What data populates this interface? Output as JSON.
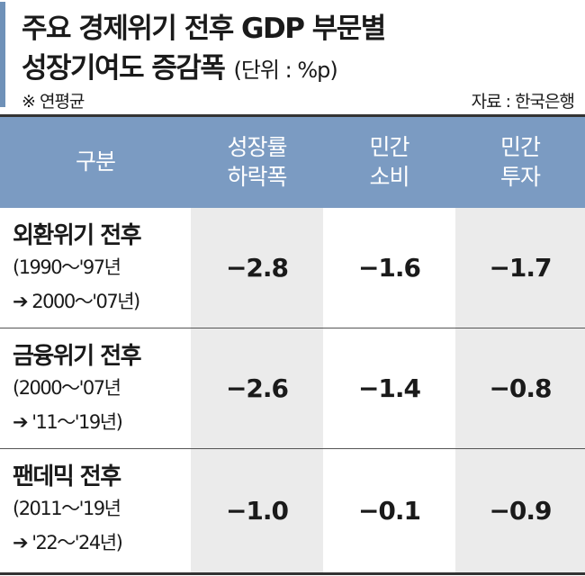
{
  "title": {
    "line1": "주요 경제위기 전후 GDP 부문별",
    "line2": "성장기여도 증감폭",
    "unit": "(단위 : %p)"
  },
  "note": "※ 연평균",
  "source": "자료 : 한국은행",
  "table": {
    "headers": [
      {
        "line1": "구분",
        "line2": ""
      },
      {
        "line1": "성장률",
        "line2": "하락폭"
      },
      {
        "line1": "민간",
        "line2": "소비"
      },
      {
        "line1": "민간",
        "line2": "투자"
      }
    ],
    "rows": [
      {
        "label": "외환위기 전후",
        "sub1": "(1990～'97년",
        "sub2": "➔ 2000～'07년)",
        "values": [
          "−2.8",
          "−1.6",
          "−1.7"
        ]
      },
      {
        "label": "금융위기 전후",
        "sub1": "(2000～'07년",
        "sub2": "➔ '11～'19년)",
        "values": [
          "−2.6",
          "−1.4",
          "−0.8"
        ]
      },
      {
        "label": "팬데믹 전후",
        "sub1": "(2011～'19년",
        "sub2": "➔ '22～'24년)",
        "values": [
          "−1.0",
          "−0.1",
          "−0.9"
        ]
      }
    ]
  }
}
